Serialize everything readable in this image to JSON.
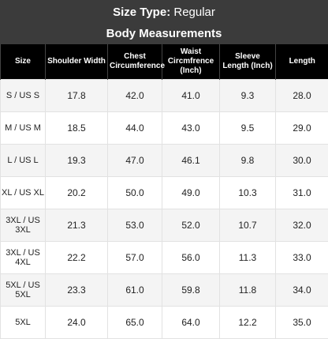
{
  "header": {
    "label": "Size Type:",
    "value": "Regular",
    "subtitle": "Body Measurements"
  },
  "table": {
    "columns": [
      "Size",
      "Shoulder Width",
      "Chest Circumference",
      "Waist Circmfrence (Inch)",
      "Sleeve Length (Inch)",
      "Length"
    ],
    "rows": [
      [
        "S / US S",
        "17.8",
        "42.0",
        "41.0",
        "9.3",
        "28.0"
      ],
      [
        "M / US M",
        "18.5",
        "44.0",
        "43.0",
        "9.5",
        "29.0"
      ],
      [
        "L / US L",
        "19.3",
        "47.0",
        "46.1",
        "9.8",
        "30.0"
      ],
      [
        "XL / US XL",
        "20.2",
        "50.0",
        "49.0",
        "10.3",
        "31.0"
      ],
      [
        "3XL / US 3XL",
        "21.3",
        "53.0",
        "52.0",
        "10.7",
        "32.0"
      ],
      [
        "3XL / US 4XL",
        "22.2",
        "57.0",
        "56.0",
        "11.3",
        "33.0"
      ],
      [
        "5XL / US 5XL",
        "23.3",
        "61.0",
        "59.8",
        "11.8",
        "34.0"
      ],
      [
        "5XL",
        "24.0",
        "65.0",
        "64.0",
        "12.2",
        "35.0"
      ]
    ]
  }
}
